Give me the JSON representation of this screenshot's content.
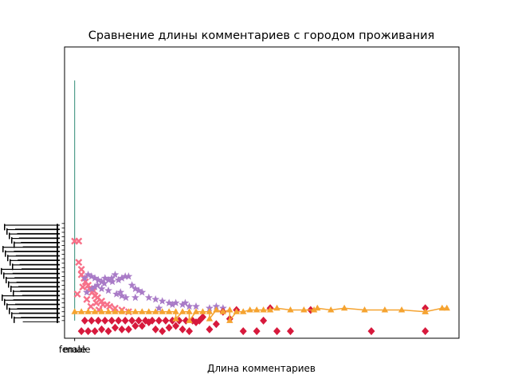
{
  "chart_data": {
    "type": "scatter",
    "title": "Сравнение длины комментариев с городом проживания",
    "xlabel": "Длина комментариев",
    "ylabel": "",
    "xlim": [
      -150,
      5700
    ],
    "ylim": [
      -1.0,
      15.5
    ],
    "grid": false,
    "legend": "none",
    "x_ticks": [
      {
        "value": 0,
        "label": "female"
      },
      {
        "value": 0,
        "label": "male"
      }
    ],
    "y_tick_labels_overlapping": true,
    "y_ticks": [
      0,
      0.25,
      0.5,
      0.75,
      1.0,
      1.25,
      1.5,
      1.75,
      2.0,
      2.25,
      2.5,
      2.75,
      3.0,
      3.25,
      3.5,
      3.75,
      4.0,
      4.25,
      4.5,
      4.75,
      5.0,
      5.25,
      5.5
    ],
    "series": [
      {
        "marker": "vline",
        "color": "#2e8b74",
        "x": [
          0,
          0
        ],
        "y": [
          0,
          13.6
        ]
      },
      {
        "marker": "X",
        "color": "#f77189",
        "x": [
          0,
          60,
          60,
          100,
          100,
          140,
          160,
          200,
          220,
          260,
          300,
          340,
          400,
          480,
          520,
          600,
          700,
          800,
          40,
          120,
          180,
          240,
          280,
          320,
          360,
          420
        ],
        "y": [
          4.5,
          4.5,
          3.3,
          2.9,
          2.6,
          2.4,
          2.2,
          2.0,
          1.8,
          1.6,
          1.4,
          1.3,
          1.1,
          0.9,
          0.8,
          0.7,
          0.6,
          0.5,
          1.5,
          1.9,
          1.2,
          0.8,
          1.7,
          1.0,
          0.6,
          0.9
        ]
      },
      {
        "marker": "*",
        "color": "#a97bc7",
        "x": [
          150,
          200,
          250,
          300,
          350,
          400,
          450,
          500,
          550,
          600,
          650,
          700,
          750,
          800,
          850,
          900,
          950,
          1000,
          1100,
          1200,
          1300,
          1400,
          1500,
          1600,
          1700,
          1800,
          2000,
          2200,
          300,
          400,
          500,
          620,
          700,
          760,
          1640,
          2100,
          1450,
          900,
          1250,
          180,
          260,
          340,
          440,
          560,
          680
        ],
        "y": [
          2.4,
          2.6,
          2.5,
          2.4,
          2.3,
          2.2,
          2.4,
          2.3,
          2.4,
          2.6,
          2.3,
          2.4,
          2.5,
          2.5,
          2.0,
          1.8,
          1.7,
          1.6,
          1.3,
          1.2,
          1.1,
          1.0,
          1.0,
          0.9,
          0.8,
          0.8,
          0.7,
          0.7,
          1.9,
          1.8,
          1.7,
          1.5,
          1.4,
          1.3,
          1.0,
          0.8,
          0.9,
          1.3,
          0.7,
          1.6,
          1.8,
          2.0,
          2.1,
          2.2,
          1.6
        ]
      },
      {
        "marker": "D",
        "color": "#d7193c",
        "x": [
          100,
          200,
          300,
          400,
          500,
          600,
          700,
          800,
          900,
          1000,
          1100,
          1200,
          1300,
          1400,
          1500,
          1600,
          1700,
          1800,
          1900,
          2000,
          2100,
          2200,
          2300,
          2400,
          2500,
          2700,
          2800,
          2900,
          3000,
          3200,
          5200,
          5200,
          4400,
          3500,
          150,
          250,
          350,
          450,
          550,
          650,
          750,
          850,
          950,
          1050,
          1150,
          1250,
          1350,
          1450,
          1550,
          1650,
          1750,
          1850
        ],
        "y": [
          -0.6,
          -0.6,
          -0.6,
          -0.5,
          -0.6,
          -0.4,
          -0.5,
          -0.5,
          -0.3,
          -0.3,
          -0.1,
          -0.5,
          -0.6,
          -0.4,
          -0.3,
          -0.5,
          -0.6,
          -0.1,
          0.2,
          -0.5,
          -0.2,
          0.5,
          0.1,
          0.6,
          -0.6,
          -0.6,
          0.0,
          0.7,
          -0.6,
          -0.6,
          0.7,
          -0.6,
          -0.6,
          0.6,
          0.0,
          0.0,
          0.0,
          0.0,
          0.0,
          0.0,
          0.0,
          0.0,
          0.0,
          0.0,
          0.0,
          0.0,
          0.0,
          0.0,
          0.0,
          0.0,
          0.0,
          0.0
        ]
      },
      {
        "marker": "^-",
        "color": "#f5a330",
        "x": [
          0,
          100,
          200,
          300,
          400,
          500,
          600,
          700,
          800,
          900,
          1000,
          1100,
          1200,
          1300,
          1400,
          1500,
          1600,
          1700,
          1800,
          1900,
          2000,
          2100,
          2200,
          2300,
          2400,
          2500,
          2600,
          2700,
          2800,
          2900,
          3000,
          3200,
          3400,
          3550,
          3600,
          3800,
          4000,
          4300,
          4600,
          4850,
          5200,
          5200,
          5450,
          5520,
          1500,
          1700,
          2000,
          2300
        ],
        "y": [
          0.5,
          0.5,
          0.5,
          0.5,
          0.5,
          0.5,
          0.5,
          0.5,
          0.5,
          0.5,
          0.5,
          0.5,
          0.5,
          0.5,
          0.5,
          0.5,
          0.5,
          0.5,
          0.5,
          0.5,
          0.5,
          0.6,
          0.5,
          0.6,
          0.5,
          0.5,
          0.6,
          0.6,
          0.6,
          0.6,
          0.7,
          0.6,
          0.6,
          0.6,
          0.7,
          0.6,
          0.7,
          0.6,
          0.6,
          0.6,
          0.5,
          0.5,
          0.7,
          0.7,
          0.1,
          0.0,
          0.1,
          0.0
        ]
      }
    ]
  }
}
